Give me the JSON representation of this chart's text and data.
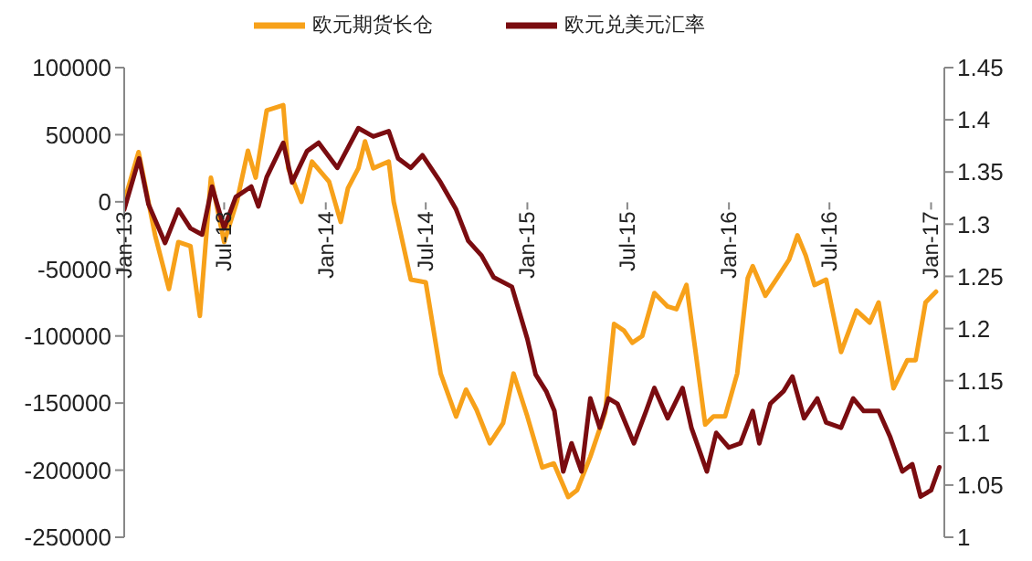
{
  "chart_data": {
    "type": "line",
    "xlim": [
      "2013-01-01",
      "2017-01-25"
    ],
    "xticks": [
      {
        "value": "2013-01-01",
        "label": "Jan-13"
      },
      {
        "value": "2013-07-01",
        "label": "Jul-13"
      },
      {
        "value": "2014-01-01",
        "label": "Jan-14"
      },
      {
        "value": "2014-07-01",
        "label": "Jul-14"
      },
      {
        "value": "2015-01-01",
        "label": "Jan-15"
      },
      {
        "value": "2015-07-01",
        "label": "Jul-15"
      },
      {
        "value": "2016-01-01",
        "label": "Jan-16"
      },
      {
        "value": "2016-07-01",
        "label": "Jul-16"
      },
      {
        "value": "2017-01-01",
        "label": "Jan-17"
      }
    ],
    "ylim": [
      -250000,
      100000
    ],
    "yticks": [
      100000,
      50000,
      0,
      -50000,
      -100000,
      -150000,
      -200000,
      -250000
    ],
    "y2lim": [
      1,
      1.45
    ],
    "y2ticks": [
      1.45,
      1.4,
      1.35,
      1.3,
      1.25,
      1.2,
      1.15,
      1.1,
      1.05,
      1
    ],
    "legend": "top",
    "series": [
      {
        "name": "欧元期货长仓",
        "color": "#f7a11a",
        "x": [
          "2013-01-01",
          "2013-01-27",
          "2013-02-26",
          "2013-03-23",
          "2013-04-09",
          "2013-05-01",
          "2013-05-18",
          "2013-06-07",
          "2013-07-01",
          "2013-07-24",
          "2013-08-13",
          "2013-08-27",
          "2013-09-16",
          "2013-10-16",
          "2013-10-25",
          "2013-11-18",
          "2013-12-07",
          "2014-01-07",
          "2014-01-28",
          "2014-02-10",
          "2014-03-01",
          "2014-03-13",
          "2014-03-28",
          "2014-04-25",
          "2014-05-04",
          "2014-06-04",
          "2014-07-01",
          "2014-07-28",
          "2014-08-25",
          "2014-09-12",
          "2014-10-01",
          "2014-10-25",
          "2014-11-18",
          "2014-12-07",
          "2015-01-01",
          "2015-01-28",
          "2015-02-18",
          "2015-03-16",
          "2015-04-01",
          "2015-04-25",
          "2015-05-22",
          "2015-06-07",
          "2015-06-25",
          "2015-07-10",
          "2015-07-28",
          "2015-08-19",
          "2015-09-12",
          "2015-09-28",
          "2015-10-16",
          "2015-11-01",
          "2015-11-19",
          "2015-12-04",
          "2015-12-25",
          "2016-01-16",
          "2016-02-04",
          "2016-02-13",
          "2016-03-07",
          "2016-03-28",
          "2016-04-19",
          "2016-05-04",
          "2016-05-19",
          "2016-06-04",
          "2016-06-25",
          "2016-07-22",
          "2016-08-19",
          "2016-09-12",
          "2016-09-28",
          "2016-10-25",
          "2016-11-19",
          "2016-12-04",
          "2016-12-22",
          "2017-01-10"
        ],
        "values": [
          0,
          37000,
          -25000,
          -65000,
          -30000,
          -33000,
          -85000,
          18000,
          -30000,
          0,
          38000,
          18000,
          68000,
          72000,
          25000,
          0,
          30000,
          15000,
          -15000,
          10000,
          25000,
          45000,
          25000,
          30000,
          0,
          -58000,
          -60000,
          -128000,
          -160000,
          -140000,
          -155000,
          -180000,
          -165000,
          -128000,
          -160000,
          -198000,
          -195000,
          -220000,
          -215000,
          -190000,
          -157000,
          -91000,
          -96000,
          -105000,
          -100000,
          -68000,
          -78000,
          -80000,
          -62000,
          -110000,
          -166000,
          -160000,
          -160000,
          -128000,
          -57000,
          -48000,
          -70000,
          -57000,
          -43000,
          -25000,
          -40000,
          -62000,
          -58000,
          -112000,
          -81000,
          -90000,
          -75000,
          -139000,
          -118000,
          -118000,
          -75000,
          -67000
        ]
      },
      {
        "name": "欧元兑美元汇率",
        "color": "#7a0c10",
        "axis": "y2",
        "x": [
          "2013-01-01",
          "2013-01-28",
          "2013-02-14",
          "2013-03-16",
          "2013-04-09",
          "2013-05-01",
          "2013-05-22",
          "2013-06-09",
          "2013-07-01",
          "2013-07-22",
          "2013-08-19",
          "2013-09-01",
          "2013-09-16",
          "2013-10-16",
          "2013-11-01",
          "2013-11-28",
          "2013-12-19",
          "2014-01-22",
          "2014-03-01",
          "2014-03-28",
          "2014-04-25",
          "2014-05-12",
          "2014-06-04",
          "2014-06-25",
          "2014-07-28",
          "2014-08-25",
          "2014-09-16",
          "2014-10-10",
          "2014-11-01",
          "2014-12-04",
          "2015-01-01",
          "2015-01-16",
          "2015-02-04",
          "2015-02-19",
          "2015-03-07",
          "2015-03-22",
          "2015-04-09",
          "2015-04-25",
          "2015-05-12",
          "2015-05-28",
          "2015-06-13",
          "2015-07-13",
          "2015-08-04",
          "2015-08-19",
          "2015-09-12",
          "2015-10-09",
          "2015-10-25",
          "2015-11-22",
          "2015-12-09",
          "2016-01-01",
          "2016-01-22",
          "2016-02-13",
          "2016-02-25",
          "2016-03-16",
          "2016-04-09",
          "2016-04-25",
          "2016-05-16",
          "2016-06-09",
          "2016-06-25",
          "2016-07-22",
          "2016-08-13",
          "2016-09-01",
          "2016-09-28",
          "2016-10-19",
          "2016-11-10",
          "2016-11-28",
          "2016-12-13",
          "2017-01-01",
          "2017-01-16"
        ],
        "values": [
          1.314,
          1.363,
          1.319,
          1.282,
          1.314,
          1.296,
          1.29,
          1.336,
          1.296,
          1.326,
          1.336,
          1.317,
          1.345,
          1.378,
          1.34,
          1.37,
          1.378,
          1.354,
          1.392,
          1.384,
          1.389,
          1.363,
          1.354,
          1.366,
          1.34,
          1.314,
          1.284,
          1.27,
          1.249,
          1.24,
          1.19,
          1.156,
          1.14,
          1.121,
          1.063,
          1.09,
          1.063,
          1.133,
          1.105,
          1.133,
          1.128,
          1.09,
          1.121,
          1.143,
          1.114,
          1.143,
          1.105,
          1.063,
          1.1,
          1.086,
          1.09,
          1.121,
          1.09,
          1.128,
          1.14,
          1.154,
          1.114,
          1.133,
          1.11,
          1.105,
          1.133,
          1.121,
          1.121,
          1.096,
          1.063,
          1.07,
          1.039,
          1.045,
          1.067
        ]
      }
    ]
  }
}
